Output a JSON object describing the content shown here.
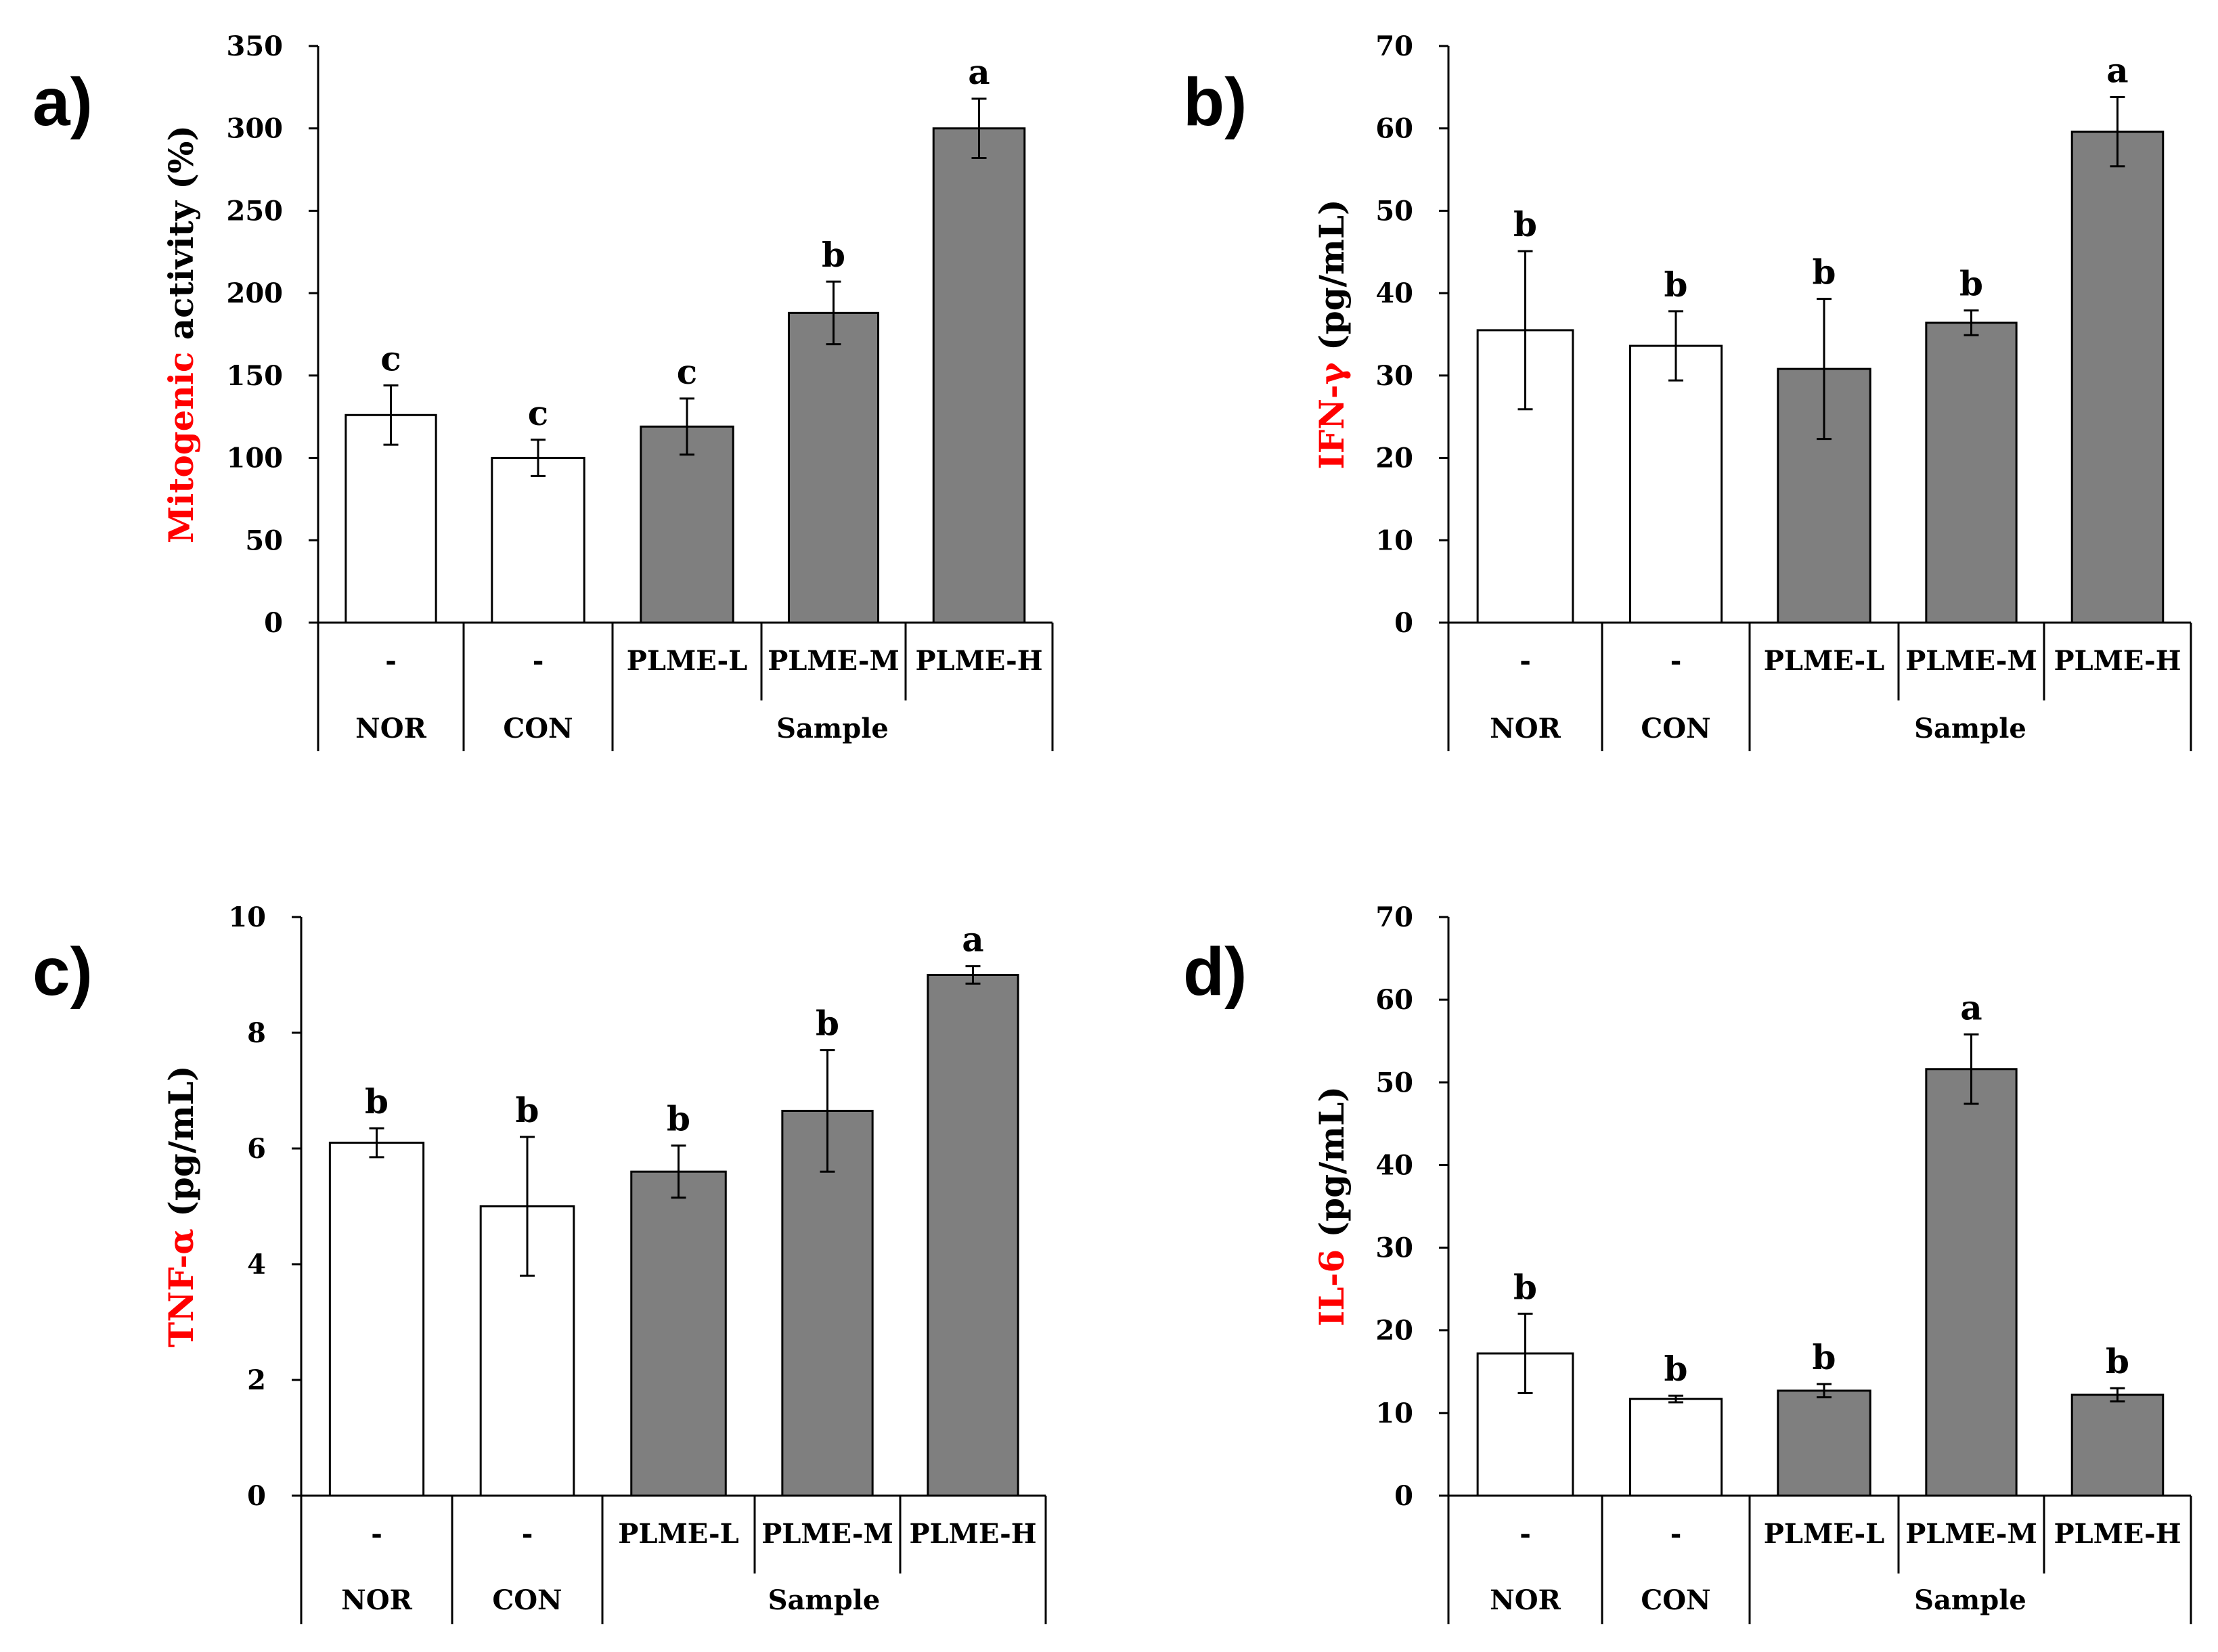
{
  "figure": {
    "colors": {
      "control_bar": "#ffffff",
      "sample_bar": "#7f7f7f",
      "axis": "#000000",
      "highlight_text": "#ff0000"
    }
  },
  "chart_data": [
    {
      "type": "bar",
      "panel_letter": "a)",
      "ylabel_highlight": "Mitogenic",
      "ylabel_rest": " activity (%)",
      "ylim": [
        0,
        350
      ],
      "yticks": [
        0,
        50,
        100,
        150,
        200,
        250,
        300,
        350
      ],
      "categories": [
        "-",
        "-",
        "PLME-L",
        "PLME-M",
        "PLME-H"
      ],
      "groups": [
        {
          "label": "NOR",
          "span": [
            0,
            0
          ]
        },
        {
          "label": "CON",
          "span": [
            1,
            1
          ]
        },
        {
          "label": "Sample",
          "span": [
            2,
            4
          ]
        }
      ],
      "values": [
        126,
        100,
        119,
        188,
        300
      ],
      "errors": [
        18,
        11,
        17,
        19,
        18
      ],
      "significance": [
        "c",
        "c",
        "c",
        "b",
        "a"
      ],
      "bar_fill": [
        "control",
        "control",
        "sample",
        "sample",
        "sample"
      ]
    },
    {
      "type": "bar",
      "panel_letter": "b)",
      "ylabel_highlight": "IFN-γ",
      "ylabel_rest": " (pg/mL)",
      "ylim": [
        0,
        70
      ],
      "yticks": [
        0,
        10,
        20,
        30,
        40,
        50,
        60,
        70
      ],
      "categories": [
        "-",
        "-",
        "PLME-L",
        "PLME-M",
        "PLME-H"
      ],
      "groups": [
        {
          "label": "NOR",
          "span": [
            0,
            0
          ]
        },
        {
          "label": "CON",
          "span": [
            1,
            1
          ]
        },
        {
          "label": "Sample",
          "span": [
            2,
            4
          ]
        }
      ],
      "values": [
        35.5,
        33.6,
        30.8,
        36.4,
        59.6
      ],
      "errors": [
        9.6,
        4.2,
        8.5,
        1.5,
        4.2
      ],
      "significance": [
        "b",
        "b",
        "b",
        "b",
        "a"
      ],
      "bar_fill": [
        "control",
        "control",
        "sample",
        "sample",
        "sample"
      ]
    },
    {
      "type": "bar",
      "panel_letter": "c)",
      "ylabel_highlight": "TNF-α",
      "ylabel_rest": " (pg/mL)",
      "ylim": [
        0,
        10
      ],
      "yticks": [
        0,
        2,
        4,
        6,
        8,
        10
      ],
      "categories": [
        "-",
        "-",
        "PLME-L",
        "PLME-M",
        "PLME-H"
      ],
      "groups": [
        {
          "label": "NOR",
          "span": [
            0,
            0
          ]
        },
        {
          "label": "CON",
          "span": [
            1,
            1
          ]
        },
        {
          "label": "Sample",
          "span": [
            2,
            4
          ]
        }
      ],
      "values": [
        6.1,
        5.0,
        5.6,
        6.65,
        9.0
      ],
      "errors": [
        0.25,
        1.2,
        0.45,
        1.05,
        0.15
      ],
      "significance": [
        "b",
        "b",
        "b",
        "b",
        "a"
      ],
      "bar_fill": [
        "control",
        "control",
        "sample",
        "sample",
        "sample"
      ]
    },
    {
      "type": "bar",
      "panel_letter": "d)",
      "ylabel_highlight": "IL-6",
      "ylabel_rest": " (pg/mL)",
      "ylim": [
        0,
        70
      ],
      "yticks": [
        0,
        10,
        20,
        30,
        40,
        50,
        60,
        70
      ],
      "categories": [
        "-",
        "-",
        "PLME-L",
        "PLME-M",
        "PLME-H"
      ],
      "groups": [
        {
          "label": "NOR",
          "span": [
            0,
            0
          ]
        },
        {
          "label": "CON",
          "span": [
            1,
            1
          ]
        },
        {
          "label": "Sample",
          "span": [
            2,
            4
          ]
        }
      ],
      "values": [
        17.2,
        11.7,
        12.7,
        51.6,
        12.2
      ],
      "errors": [
        4.8,
        0.4,
        0.8,
        4.2,
        0.8
      ],
      "significance": [
        "b",
        "b",
        "b",
        "a",
        "b"
      ],
      "bar_fill": [
        "control",
        "control",
        "sample",
        "sample",
        "sample"
      ]
    }
  ]
}
